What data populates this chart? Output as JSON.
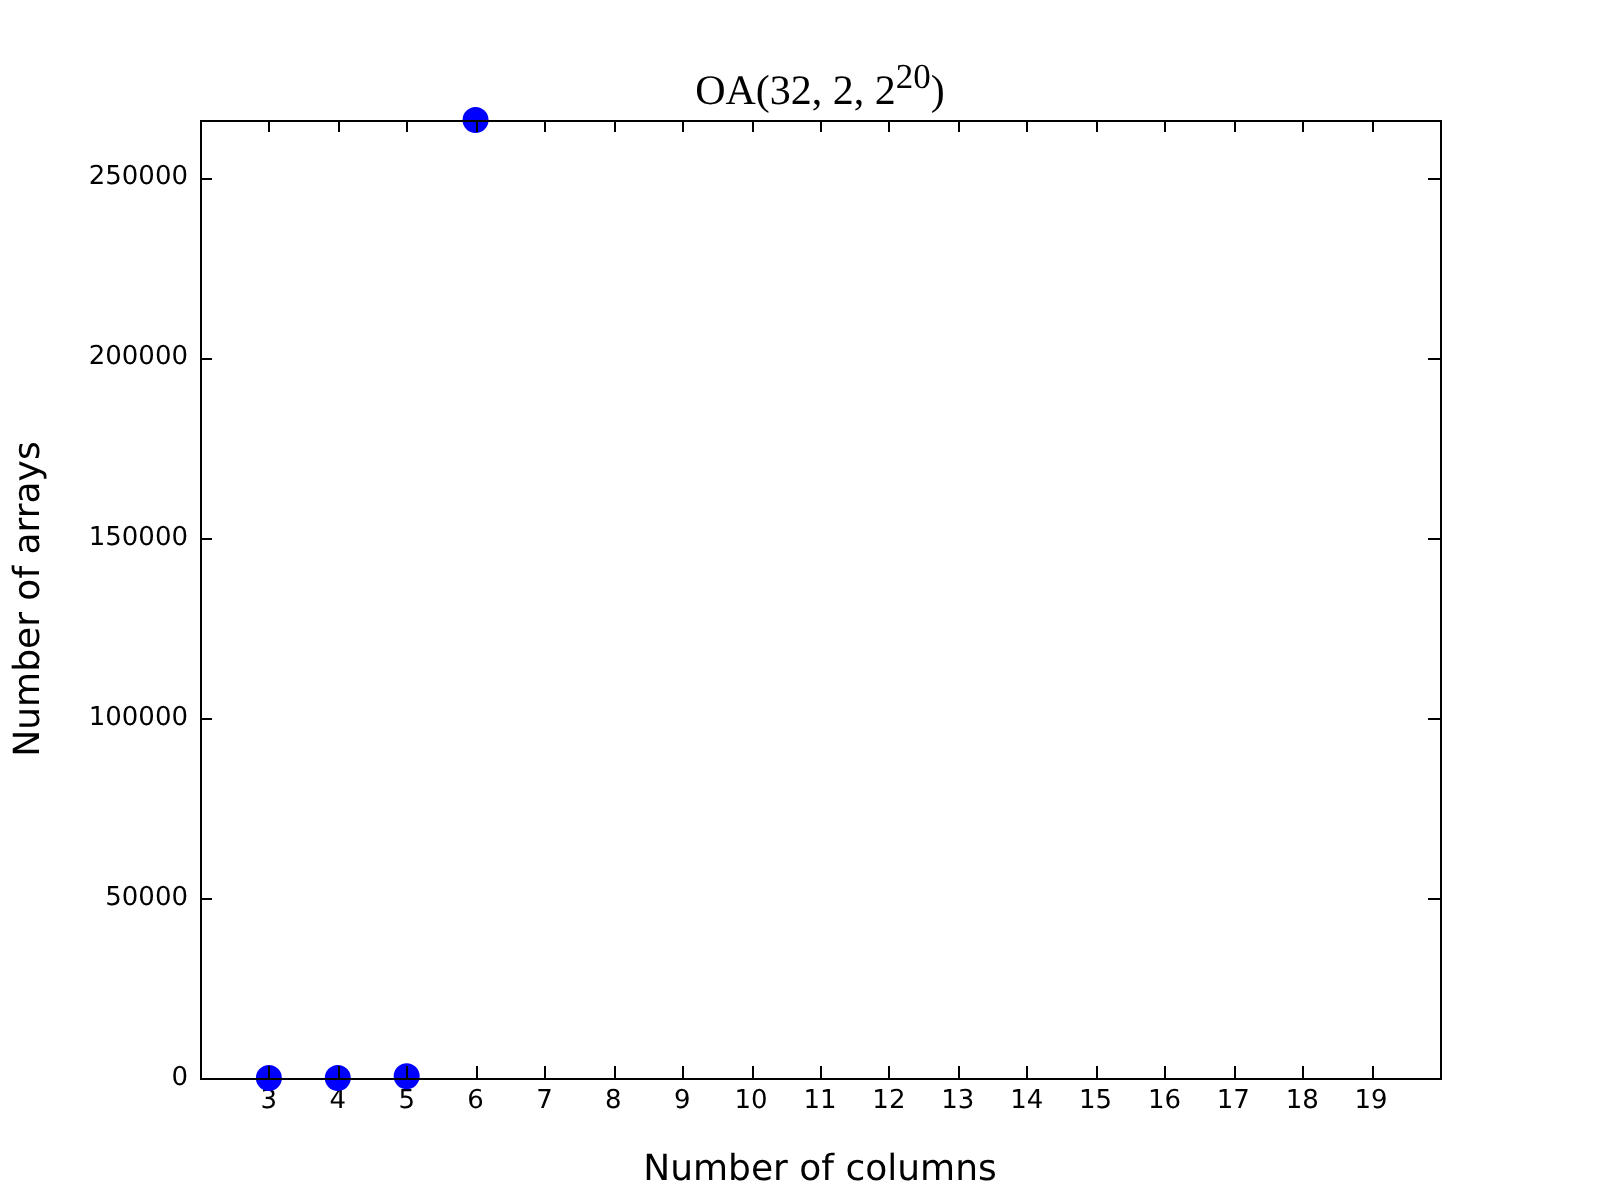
{
  "chart_data": {
    "type": "scatter",
    "title": "OA(32, 2, 2$^{20}$)",
    "xlabel": "Number of columns",
    "ylabel": "Number of arrays",
    "x": [
      3,
      4,
      5,
      6
    ],
    "series": [
      {
        "color": "#0000ff",
        "values": [
          0,
          0,
          500,
          266000
        ]
      }
    ],
    "xlim": [
      2,
      20
    ],
    "xticks": [
      3,
      4,
      5,
      6,
      7,
      8,
      9,
      10,
      11,
      12,
      13,
      14,
      15,
      16,
      17,
      18,
      19
    ],
    "ylim": [
      0,
      266000
    ],
    "yticks": [
      0,
      50000,
      100000,
      150000,
      200000,
      250000
    ],
    "grid": false,
    "legend": false,
    "marker": "circle"
  }
}
